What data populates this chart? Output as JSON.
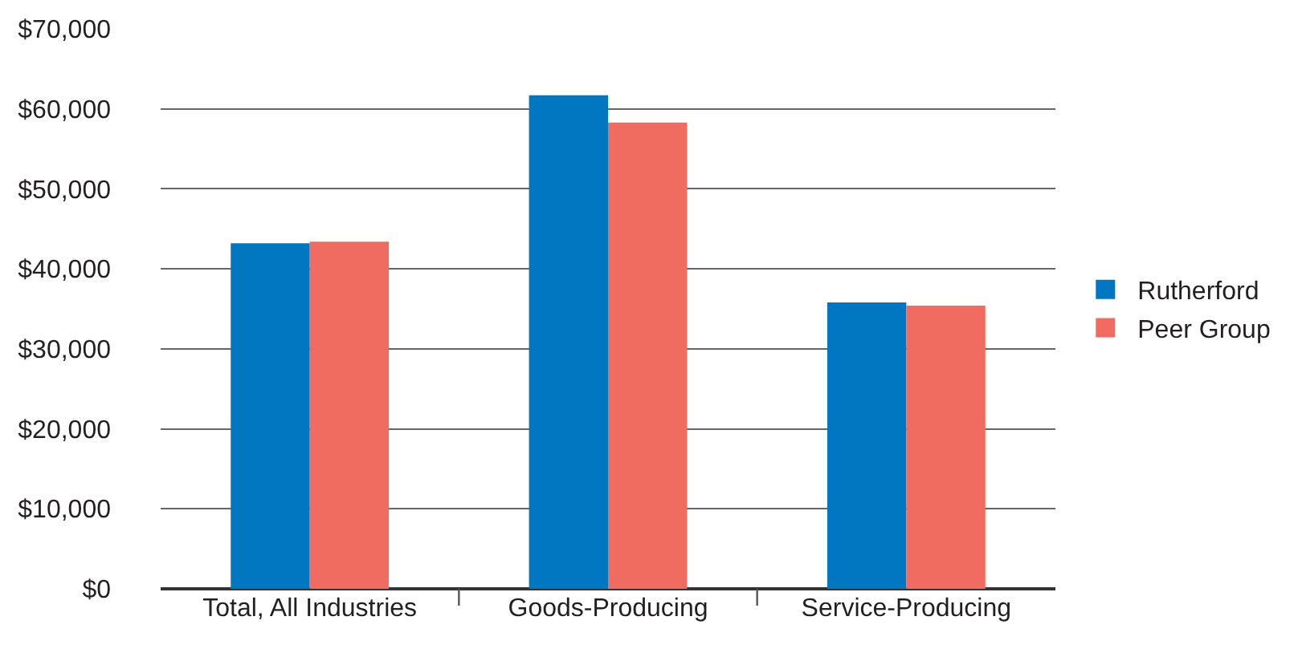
{
  "chart_data": {
    "type": "bar",
    "categories": [
      "Total, All Industries",
      "Goods-Producing",
      "Service-Producing"
    ],
    "series": [
      {
        "name": "Rutherford",
        "color": "#0077c0",
        "values": [
          43200,
          61700,
          35800
        ]
      },
      {
        "name": "Peer Group",
        "color": "#f06b60",
        "values": [
          43400,
          58300,
          35400
        ]
      }
    ],
    "ylim": [
      0,
      70000
    ],
    "yticks": [
      {
        "value": 0,
        "label": "$0"
      },
      {
        "value": 10000,
        "label": "$10,000"
      },
      {
        "value": 20000,
        "label": "$20,000"
      },
      {
        "value": 30000,
        "label": "$30,000"
      },
      {
        "value": 40000,
        "label": "$40,000"
      },
      {
        "value": 50000,
        "label": "$50,000"
      },
      {
        "value": 60000,
        "label": "$60,000"
      },
      {
        "value": 70000,
        "label": "$70,000"
      }
    ],
    "grid": "y",
    "legend": "right"
  }
}
